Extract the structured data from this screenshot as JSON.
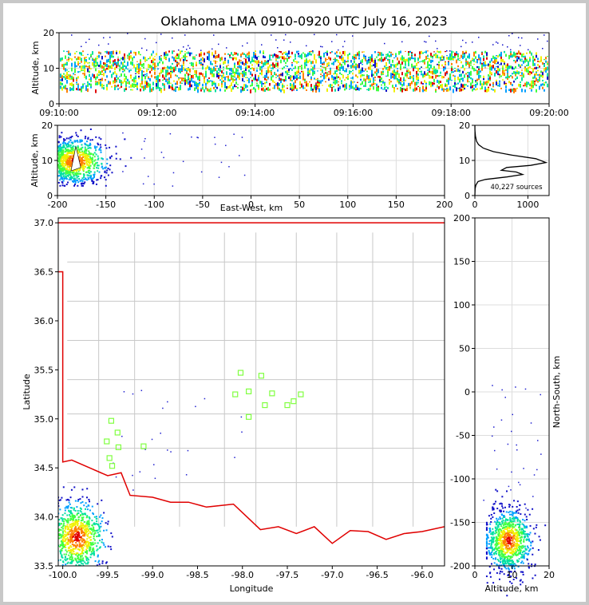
{
  "title": "Oklahoma LMA 0910-0920 UTC July 16, 2023",
  "colors": {
    "state_border": "#e00000",
    "county_lines": "#c8c8c8",
    "stations": "#80ff40",
    "grid": "#dddddd"
  },
  "chart_data": [
    {
      "id": "time_altitude",
      "type": "scatter",
      "ylabel": "Altitude, km",
      "xlabel": "",
      "ylim": [
        0,
        20
      ],
      "yticks": [
        0,
        10,
        20
      ],
      "xlim": [
        "09:10:00",
        "09:20:00"
      ],
      "xticks": [
        "09:10:00",
        "09:12:00",
        "09:14:00",
        "09:16:00",
        "09:18:00",
        "09:20:00"
      ],
      "altitude_band_km": [
        4,
        15
      ],
      "grid": true
    },
    {
      "id": "ew_altitude",
      "type": "scatter",
      "xlabel": "East-West, km",
      "ylabel": "Altitude, km",
      "xlim": [
        -200,
        200
      ],
      "xticks": [
        -200,
        -150,
        -100,
        -50,
        0,
        50,
        100,
        150,
        200
      ],
      "ylim": [
        0,
        20
      ],
      "yticks": [
        0,
        10,
        20
      ],
      "core_ew_km": -182,
      "core_alt_km": 10,
      "grid": true
    },
    {
      "id": "altitude_histogram",
      "type": "line",
      "xlim": [
        0,
        1400
      ],
      "xticks": [
        0,
        1000
      ],
      "ylim": [
        0,
        20
      ],
      "yticks": [
        0,
        10,
        20
      ],
      "annotation": "40,227 sources",
      "x": [
        0,
        5,
        20,
        60,
        200,
        600,
        900,
        780,
        500,
        600,
        1050,
        1340,
        1150,
        700,
        350,
        160,
        70,
        30,
        10,
        2,
        0
      ],
      "y": [
        0,
        2,
        3,
        4,
        4.6,
        5.3,
        6.0,
        6.7,
        7.2,
        8.0,
        8.6,
        9.4,
        10.5,
        11.5,
        12.5,
        13.5,
        14.5,
        15.5,
        17.0,
        18.5,
        20
      ],
      "grid": true
    },
    {
      "id": "plan_view",
      "type": "scatter",
      "xlabel": "Longitude",
      "ylabel": "Latitude",
      "xlim": [
        -100.05,
        -95.75
      ],
      "ylim": [
        33.5,
        37.05
      ],
      "xticks": [
        -100.0,
        -99.5,
        -99.0,
        -98.5,
        -98.0,
        -97.5,
        -97.0,
        -96.5,
        -96.0
      ],
      "yticks": [
        33.5,
        34.0,
        34.5,
        35.0,
        35.5,
        36.0,
        36.5,
        37.0
      ],
      "core_lon": -99.85,
      "core_lat": 33.8,
      "stations": [
        [
          -98.02,
          35.47
        ],
        [
          -97.79,
          35.44
        ],
        [
          -98.08,
          35.25
        ],
        [
          -97.93,
          35.28
        ],
        [
          -97.67,
          35.26
        ],
        [
          -97.35,
          35.25
        ],
        [
          -97.43,
          35.18
        ],
        [
          -97.5,
          35.14
        ],
        [
          -97.75,
          35.14
        ],
        [
          -97.93,
          35.02
        ],
        [
          -99.46,
          34.98
        ],
        [
          -99.39,
          34.86
        ],
        [
          -99.51,
          34.77
        ],
        [
          -99.38,
          34.71
        ],
        [
          -99.1,
          34.72
        ],
        [
          -99.48,
          34.6
        ],
        [
          -99.45,
          34.52
        ]
      ]
    },
    {
      "id": "altitude_ns",
      "type": "scatter",
      "xlabel": "Altitude, km",
      "ylabel": "North-South, km",
      "xlim": [
        0,
        20
      ],
      "xticks": [
        0,
        10,
        20
      ],
      "ylim": [
        -200,
        200
      ],
      "yticks": [
        -200,
        -150,
        -100,
        -50,
        0,
        50,
        100,
        150,
        200
      ],
      "core_alt_km": 9,
      "core_ns_km": -170,
      "grid": true
    }
  ]
}
